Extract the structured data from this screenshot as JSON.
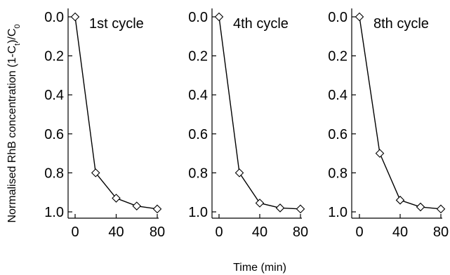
{
  "chart_data": {
    "type": "line",
    "xlabel": "Time (min)",
    "ylabel": {
      "main": "Normalised RhB concentration (1-C",
      "sub1": "t",
      "mid": ")/C",
      "sub2": "0"
    },
    "ylim": [
      0.0,
      1.0
    ],
    "y_inverted": true,
    "xlim": [
      0,
      80
    ],
    "xticks": [
      "0",
      "40",
      "80"
    ],
    "yticks": [
      "0.0",
      "0.2",
      "0.4",
      "0.6",
      "0.8",
      "1.0"
    ],
    "marker": "diamond-open",
    "panels": [
      {
        "title": "1st cycle",
        "x": [
          0,
          20,
          40,
          60,
          80
        ],
        "y": [
          0.0,
          0.8,
          0.93,
          0.97,
          0.985
        ]
      },
      {
        "title": "4th cycle",
        "x": [
          0,
          20,
          40,
          60,
          80
        ],
        "y": [
          0.0,
          0.8,
          0.955,
          0.98,
          0.985
        ]
      },
      {
        "title": "8th cycle",
        "x": [
          0,
          20,
          40,
          60,
          80
        ],
        "y": [
          0.0,
          0.7,
          0.94,
          0.975,
          0.985
        ]
      }
    ]
  }
}
